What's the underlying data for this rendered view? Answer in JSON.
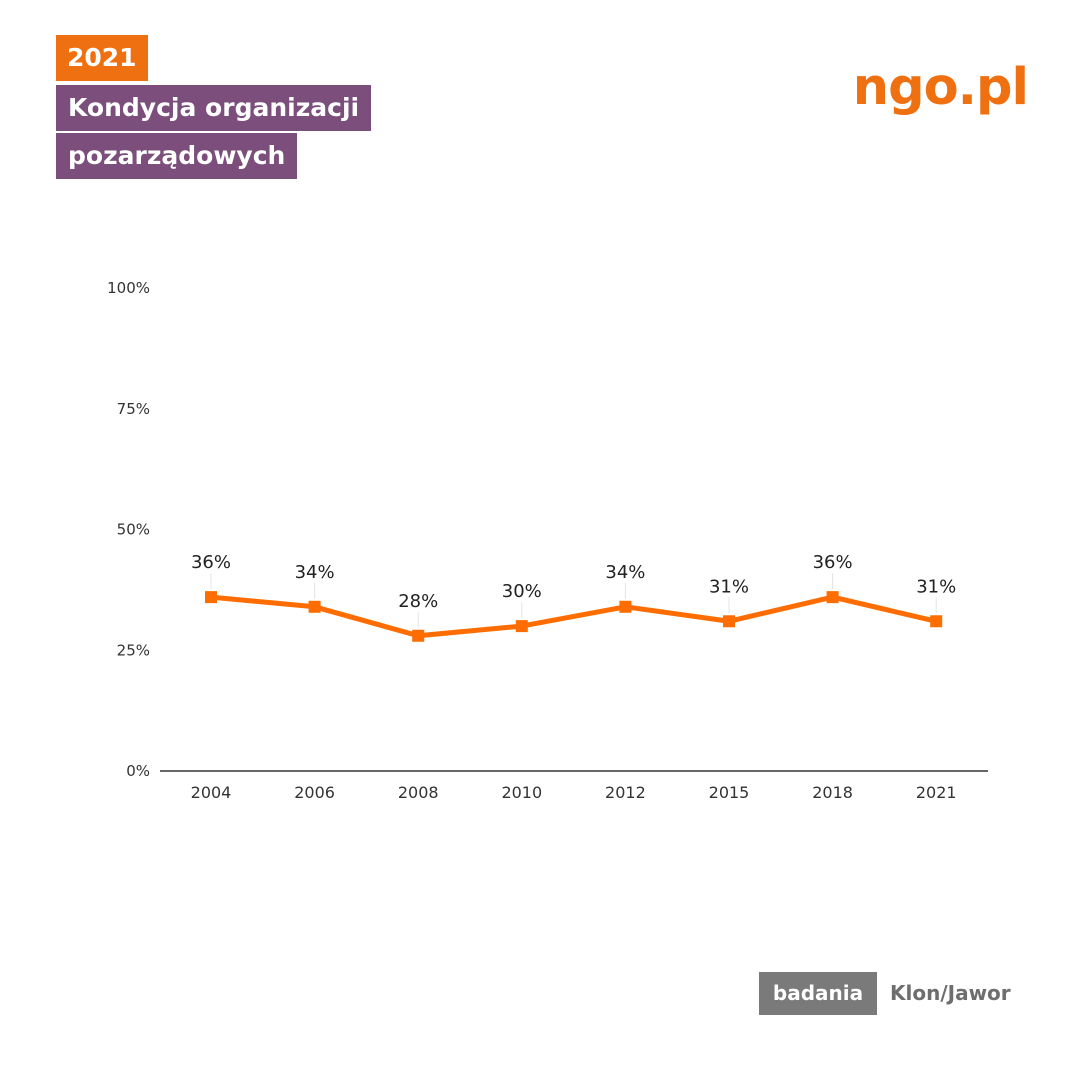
{
  "header": {
    "year": "2021",
    "title_line1": "Kondycja organizacji",
    "title_line2": "pozarządowych"
  },
  "logo": {
    "text": "ngo.pl"
  },
  "footer": {
    "badge": "badania",
    "source": "Klon/Jawor"
  },
  "colors": {
    "accent": "#ef7010",
    "title_bg": "#7b4e7c",
    "footer_badge_bg": "#7a7a7a",
    "line": "#ff6d00"
  },
  "chart_data": {
    "type": "line",
    "x": [
      "2004",
      "2006",
      "2008",
      "2010",
      "2012",
      "2015",
      "2018",
      "2021"
    ],
    "series": [
      {
        "values": [
          36,
          34,
          28,
          30,
          34,
          31,
          36,
          31
        ],
        "labels": [
          "36%",
          "34%",
          "28%",
          "30%",
          "34%",
          "31%",
          "36%",
          "31%"
        ]
      }
    ],
    "yticks": [
      "0%",
      "25%",
      "50%",
      "75%",
      "100%"
    ],
    "ylim": [
      0,
      100
    ],
    "grid": false,
    "legend": "none",
    "marker": "square"
  }
}
